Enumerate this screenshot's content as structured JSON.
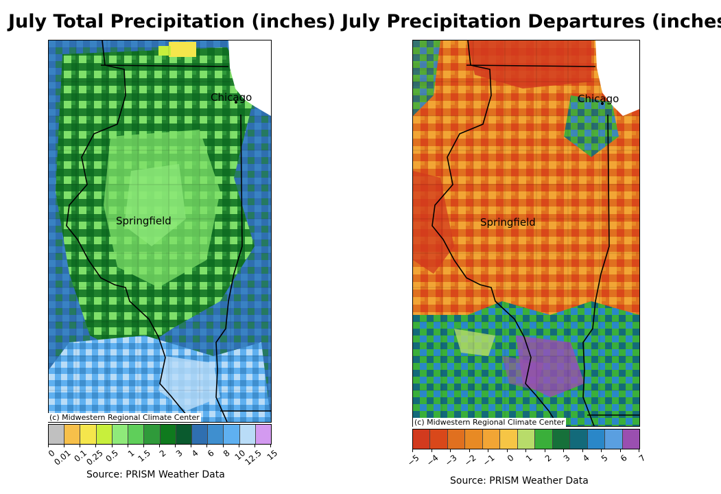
{
  "left_map": {
    "title": "July Total Precipitation (inches)",
    "credit": "(c) Midwestern Regional Climate Center",
    "source": "Source: PRISM Weather Data",
    "cities": {
      "chicago": "Chicago",
      "springfield": "Springfield"
    },
    "legend_ticks": [
      "0",
      "0.01",
      "0.1",
      "0.25",
      "0.5",
      "1",
      "1.5",
      "2",
      "3",
      "4",
      "6",
      "8",
      "10",
      "12.5",
      "15"
    ],
    "legend_colors": [
      "#c0c0c0",
      "#f7c04a",
      "#f5e64c",
      "#c8ef3c",
      "#8fea7a",
      "#5fcf5a",
      "#2f9a3a",
      "#0f7a1e",
      "#0a5a2e",
      "#2f6fb0",
      "#3f8fcf",
      "#5fb0f0",
      "#b9dcf7",
      "#d39af0"
    ]
  },
  "right_map": {
    "title": "July Precipitation Departures (inches)",
    "credit": "(c) Midwestern Regional Climate Center",
    "source": "Source: PRISM Weather Data",
    "cities": {
      "chicago": "Chicago",
      "springfield": "Springfield"
    },
    "legend_ticks": [
      "−5",
      "−4",
      "−3",
      "−2",
      "−1",
      "0",
      "1",
      "2",
      "3",
      "4",
      "5",
      "6",
      "7"
    ],
    "legend_colors": [
      "#d23a1e",
      "#d9481a",
      "#e0701f",
      "#e88a24",
      "#f2a535",
      "#f6c545",
      "#b8dc6a",
      "#3aaf3a",
      "#16703a",
      "#136a7a",
      "#2a87c8",
      "#5a9fe0",
      "#9a4fb0"
    ]
  }
}
